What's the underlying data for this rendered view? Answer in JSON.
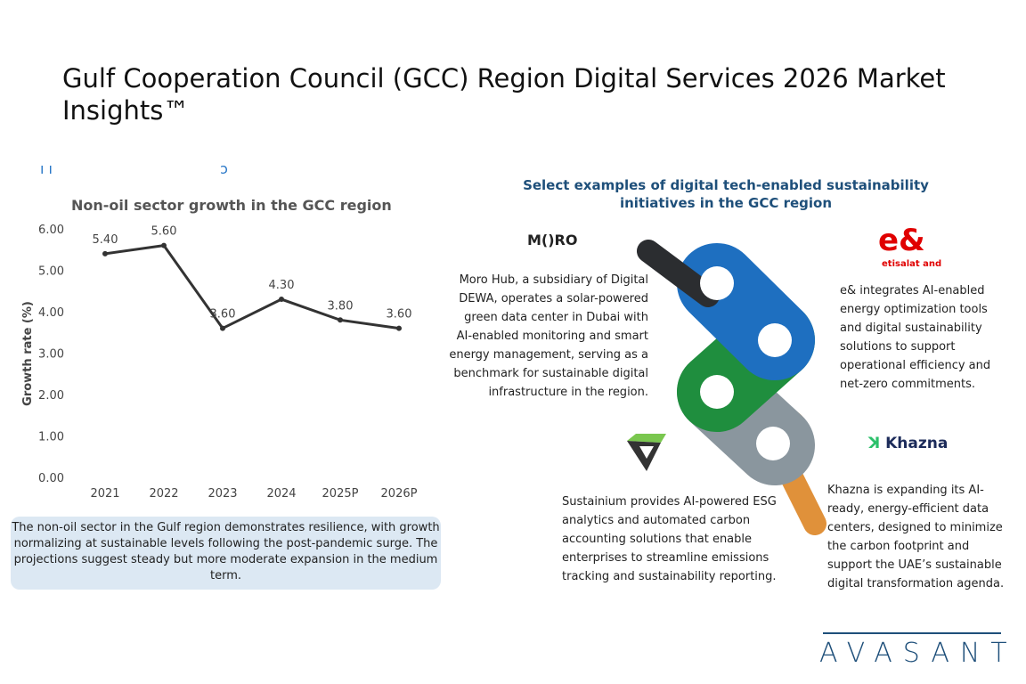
{
  "title": "Gulf Cooperation Council (GCC) Region Digital Services 2026 Market Insights™",
  "cut_heading": "ı ı                                     ɔ",
  "chart_data": {
    "type": "line",
    "title": "Non-oil sector growth in the GCC region",
    "xlabel": "",
    "ylabel": "Growth rate (%)",
    "categories": [
      "2021",
      "2022",
      "2023",
      "2024",
      "2025P",
      "2026P"
    ],
    "values": [
      5.4,
      5.6,
      3.6,
      4.3,
      3.8,
      3.6
    ],
    "data_labels": [
      "5.40",
      "5.60",
      "3.60",
      "4.30",
      "3.80",
      "3.60"
    ],
    "yticks": [
      "0.00",
      "1.00",
      "2.00",
      "3.00",
      "4.00",
      "5.00",
      "6.00"
    ],
    "ylim": [
      0,
      6
    ],
    "grid": false,
    "line_color": "#333333"
  },
  "note": "The non-oil sector in the Gulf region demonstrates resilience, with growth normalizing at sustainable levels following the post-pandemic surge. The projections suggest steady but more moderate expansion in the medium term.",
  "examples": {
    "heading": "Select examples of digital tech-enabled sustainability initiatives in the GCC region",
    "moro": {
      "logo": "M()RO",
      "text": "Moro Hub, a subsidiary of Digital DEWA, operates a solar-powered green data center in Dubai with AI-enabled monitoring and smart energy management, serving as a benchmark for sustainable digital infrastructure in the region."
    },
    "eand": {
      "logo": "e&",
      "logo_sub": "etisalat and",
      "text": "e& integrates AI-enabled energy optimization tools and digital sustainability solutions to support operational efficiency and net-zero commitments."
    },
    "sustainium": {
      "text": "Sustainium provides AI-powered ESG analytics and automated carbon accounting solutions that enable enterprises to streamline emissions tracking and sustainability reporting."
    },
    "khazna": {
      "logo": "Khazna",
      "text": "Khazna is expanding its AI-ready, energy-efficient data centers, designed to minimize the carbon footprint and support the UAE’s sustainable digital transformation agenda."
    }
  },
  "brand": "AVASANT",
  "colors": {
    "blue": "#1e6fc0",
    "green": "#1f8e3e",
    "gray": "#8a969e",
    "orange": "#e0913a",
    "black": "#2b2d30",
    "red": "#e00000"
  }
}
